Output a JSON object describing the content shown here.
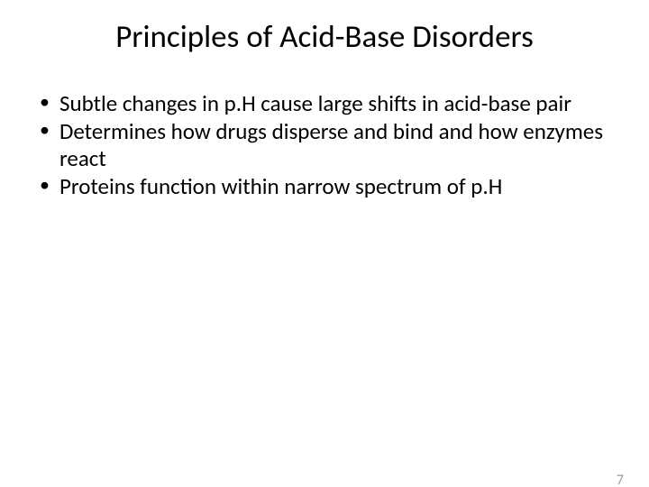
{
  "slide": {
    "title": "Principles of Acid-Base Disorders",
    "bullets": [
      "Subtle changes in p.H cause large shifts in acid-base pair",
      "Determines how drugs disperse and bind and how enzymes react",
      "Proteins function within narrow spectrum of p.H"
    ],
    "page_number": "7",
    "title_fontsize": 35,
    "bullet_fontsize": 25,
    "text_color": "#000000",
    "background_color": "#ffffff",
    "page_number_color": "#9a9a9a"
  }
}
